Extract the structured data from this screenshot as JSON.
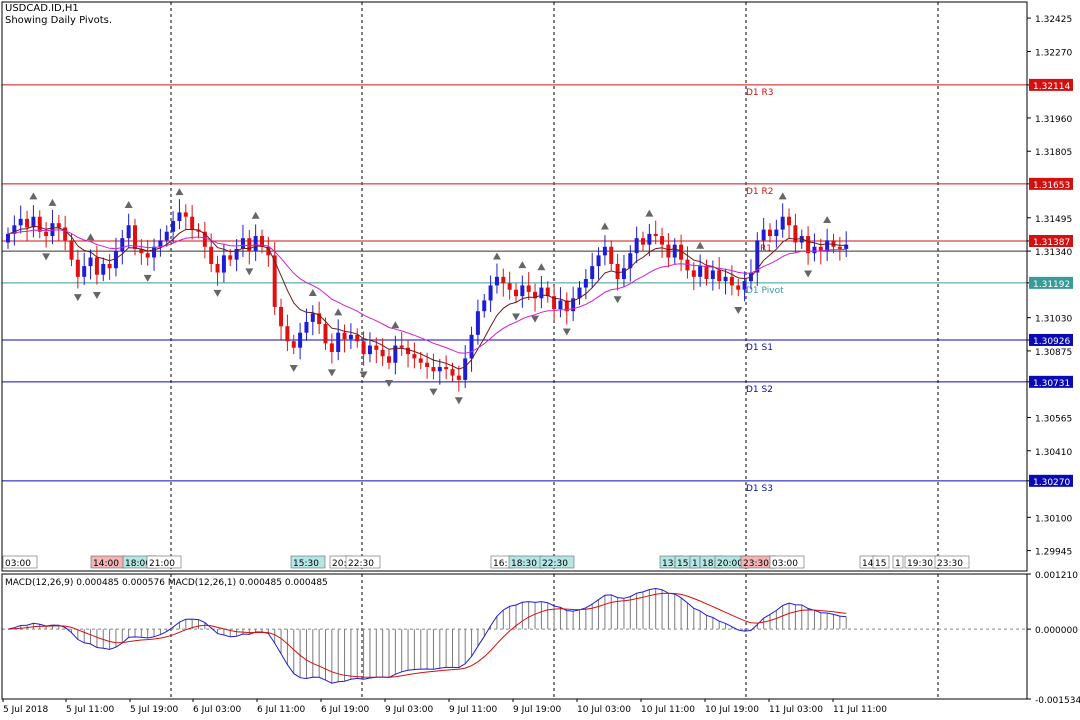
{
  "header": {
    "symbol": "USDCAD.ID,H1",
    "subtitle": "Showing Daily Pivots."
  },
  "colors": {
    "up": "#1d1dd6",
    "down": "#e01010",
    "ma_fast": "#6b1a1a",
    "ma_slow": "#d21ed2",
    "resistance": "#d21010",
    "support": "#0a0ab4",
    "pivot": "#3a9a9a",
    "macd_signal": "#d21010",
    "macd_line": "#1d1dd6",
    "hist": "#7a7a7a"
  },
  "chart_data": [
    {
      "type": "candlestick",
      "title": "USDCAD.ID,H1",
      "ylim": [
        1.2985,
        1.325
      ],
      "y_ticks": [
        "1.32425",
        "1.32270",
        "1.32114",
        "1.31960",
        "1.31805",
        "1.31653",
        "1.31495",
        "1.31387",
        "1.31340",
        "1.31192",
        "1.31030",
        "1.30926",
        "1.30875",
        "1.30731",
        "1.30565",
        "1.30410",
        "1.30270",
        "1.30100",
        "1.29945"
      ],
      "pivots": [
        {
          "label": "D1 R3",
          "value": 1.32114,
          "kind": "resistance"
        },
        {
          "label": "D1 R2",
          "value": 1.31653,
          "kind": "resistance"
        },
        {
          "label": "R1",
          "value": 1.31387,
          "kind": "resistance"
        },
        {
          "label": "D1 Pivot",
          "value": 1.31192,
          "kind": "pivot"
        },
        {
          "label": "D1 S1",
          "value": 1.30926,
          "kind": "support"
        },
        {
          "label": "D1 S2",
          "value": 1.30731,
          "kind": "support"
        },
        {
          "label": "D1 S3",
          "value": 1.3027,
          "kind": "support"
        }
      ],
      "price_tags": [
        {
          "value": "1.32114",
          "kind": "resistance"
        },
        {
          "value": "1.31653",
          "kind": "resistance"
        },
        {
          "value": "1.31387",
          "kind": "resistance"
        },
        {
          "value": "1.31192",
          "kind": "pivot"
        },
        {
          "value": "1.30926",
          "kind": "support"
        },
        {
          "value": "1.30731",
          "kind": "support"
        },
        {
          "value": "1.30270",
          "kind": "support"
        }
      ],
      "closes": [
        1.3142,
        1.3146,
        1.3149,
        1.3145,
        1.315,
        1.3143,
        1.3141,
        1.3147,
        1.3145,
        1.3139,
        1.313,
        1.3122,
        1.3127,
        1.3131,
        1.3123,
        1.3128,
        1.3126,
        1.3134,
        1.314,
        1.3146,
        1.3135,
        1.3133,
        1.3131,
        1.3136,
        1.3139,
        1.3143,
        1.3148,
        1.3152,
        1.315,
        1.3144,
        1.3143,
        1.3136,
        1.3128,
        1.3124,
        1.3132,
        1.313,
        1.3135,
        1.314,
        1.3134,
        1.3141,
        1.3136,
        1.3132,
        1.3108,
        1.3099,
        1.3092,
        1.3089,
        1.3096,
        1.3101,
        1.3105,
        1.31,
        1.3091,
        1.3087,
        1.3096,
        1.3093,
        1.3095,
        1.3092,
        1.3086,
        1.309,
        1.3088,
        1.3085,
        1.3082,
        1.309,
        1.3089,
        1.3086,
        1.3084,
        1.3082,
        1.308,
        1.3078,
        1.308,
        1.3079,
        1.3076,
        1.3074,
        1.3084,
        1.3095,
        1.3106,
        1.3111,
        1.3118,
        1.3122,
        1.3119,
        1.3116,
        1.3113,
        1.3118,
        1.3115,
        1.3112,
        1.3117,
        1.3113,
        1.3107,
        1.3111,
        1.3106,
        1.3112,
        1.3117,
        1.3121,
        1.3127,
        1.3132,
        1.3136,
        1.3128,
        1.3121,
        1.3126,
        1.3133,
        1.314,
        1.3137,
        1.3142,
        1.3141,
        1.3137,
        1.3131,
        1.3137,
        1.313,
        1.3125,
        1.3122,
        1.3127,
        1.3121,
        1.3125,
        1.312,
        1.3122,
        1.3118,
        1.3116,
        1.312,
        1.3124,
        1.3139,
        1.3144,
        1.3141,
        1.3144,
        1.315,
        1.3146,
        1.3138,
        1.3141,
        1.3133,
        1.3136,
        1.3134,
        1.3139,
        1.3136,
        1.3135,
        1.3137
      ],
      "x_tick_labels": [
        "5 Jul 2018",
        "5 Jul 11:00",
        "5 Jul 19:00",
        "6 Jul 03:00",
        "6 Jul 11:00",
        "6 Jul 19:00",
        "9 Jul 03:00",
        "9 Jul 11:00",
        "9 Jul 19:00",
        "10 Jul 03:00",
        "10 Jul 11:00",
        "10 Jul 19:00",
        "11 Jul 03:00",
        "11 Jul 11:00"
      ],
      "session_tags": [
        {
          "text": "03:00",
          "color": "#ffffff"
        },
        {
          "text": "14:00",
          "color": "#f4b4b4"
        },
        {
          "text": "18:00",
          "color": "#b4e6e6"
        },
        {
          "text": "21:00",
          "color": "#ffffff"
        },
        {
          "text": "15:30",
          "color": "#b4e6e6"
        },
        {
          "text": "20:",
          "color": "#ffffff"
        },
        {
          "text": "22:30",
          "color": "#ffffff"
        },
        {
          "text": "16:",
          "color": "#ffffff"
        },
        {
          "text": "18:30",
          "color": "#b4e6e6"
        },
        {
          "text": "22:30",
          "color": "#b4e6e6"
        },
        {
          "text": "13:",
          "color": "#b4e6e6"
        },
        {
          "text": "15:",
          "color": "#b4e6e6"
        },
        {
          "text": "1",
          "color": "#b4e6e6"
        },
        {
          "text": "18:",
          "color": "#b4e6e6"
        },
        {
          "text": "20:00",
          "color": "#b4e6e6"
        },
        {
          "text": "23:30",
          "color": "#f4b4b4"
        },
        {
          "text": "03:00",
          "color": "#ffffff"
        },
        {
          "text": "14",
          "color": "#ffffff"
        },
        {
          "text": "15",
          "color": "#ffffff"
        },
        {
          "text": "1",
          "color": "#ffffff"
        },
        {
          "text": "19:30",
          "color": "#ffffff"
        },
        {
          "text": "23:30",
          "color": "#ffffff"
        }
      ]
    },
    {
      "type": "line",
      "title": "MACD(12,26,9) 0.000485 0.000576 MACD(12,26,1) 0.000485 0.000485",
      "ylim": [
        -0.001534,
        0.00121
      ],
      "y_ticks": [
        "0.001210",
        "0.000000",
        "-0.001534"
      ],
      "series": [
        {
          "name": "MACD(12,26,9)",
          "kind": "signal"
        },
        {
          "name": "MACD(12,26,1)",
          "kind": "main"
        }
      ]
    }
  ]
}
